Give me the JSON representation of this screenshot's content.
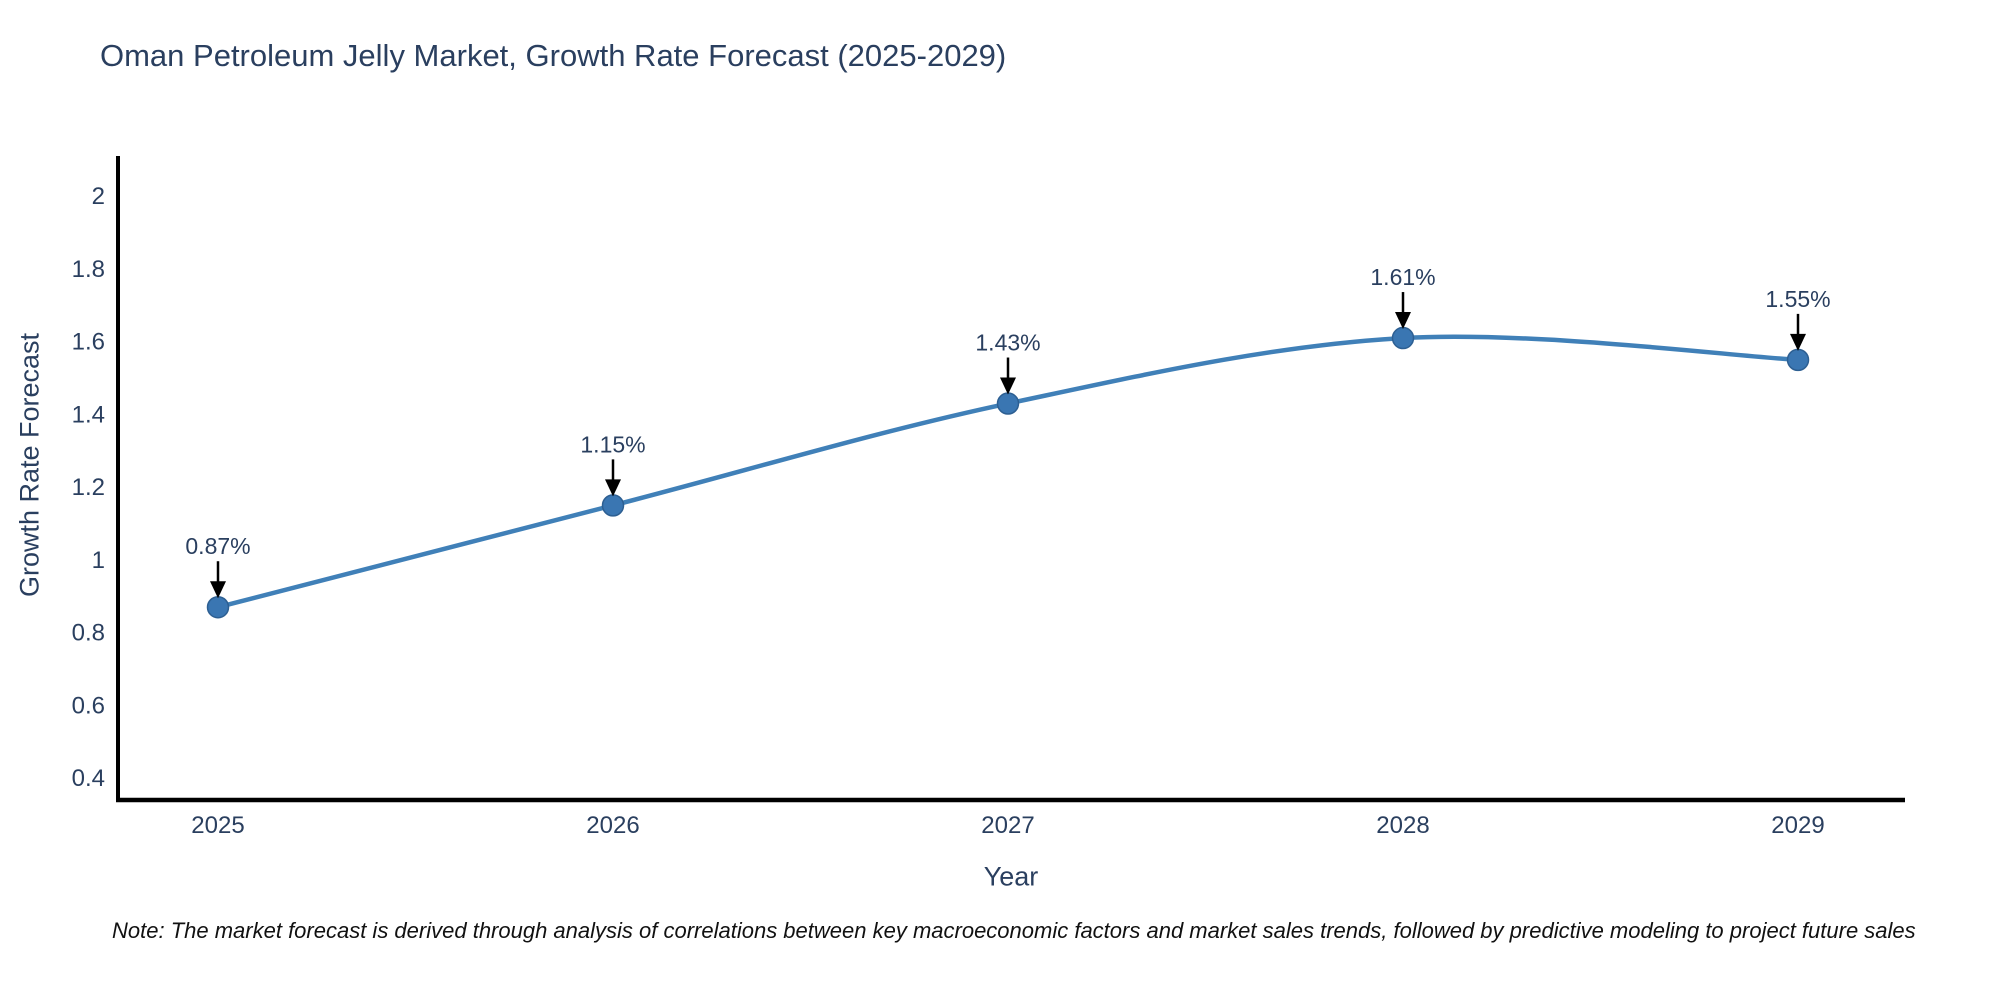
{
  "note": "Note: The market forecast is derived through analysis of correlations between key macroeconomic factors and market sales trends, followed by predictive modeling to project future sales",
  "chart_data": {
    "type": "line",
    "title": "Oman Petroleum Jelly Market, Growth Rate Forecast (2025-2029)",
    "x": [
      "2025",
      "2026",
      "2027",
      "2028",
      "2029"
    ],
    "series": [
      {
        "name": "Growth Rate Forecast",
        "values": [
          0.87,
          1.15,
          1.43,
          1.61,
          1.55
        ]
      }
    ],
    "point_labels": [
      "0.87%",
      "1.15%",
      "1.43%",
      "1.61%",
      "1.55%"
    ],
    "xlabel": "Year",
    "ylabel": "Growth Rate Forecast",
    "yticks": [
      2,
      1.8,
      1.6,
      1.4,
      1.2,
      1,
      0.8,
      0.6,
      0.4
    ],
    "ylim": [
      0.34,
      2.105
    ],
    "grid": false,
    "legend_position": "none",
    "line_shape": "spline",
    "annotation_style": "arrow-down-to-point",
    "colors": {
      "line": "#4080b8",
      "marker_fill": "#3a76b2",
      "marker_edge": "#2d5f92",
      "axis": "#000000",
      "tick_text": "#2a3f5f",
      "annotation_text": "#2a3f5f",
      "annotation_arrow": "#000000",
      "title_text": "#2a3f5f",
      "note_text": "#111111",
      "background": "#ffffff"
    }
  }
}
